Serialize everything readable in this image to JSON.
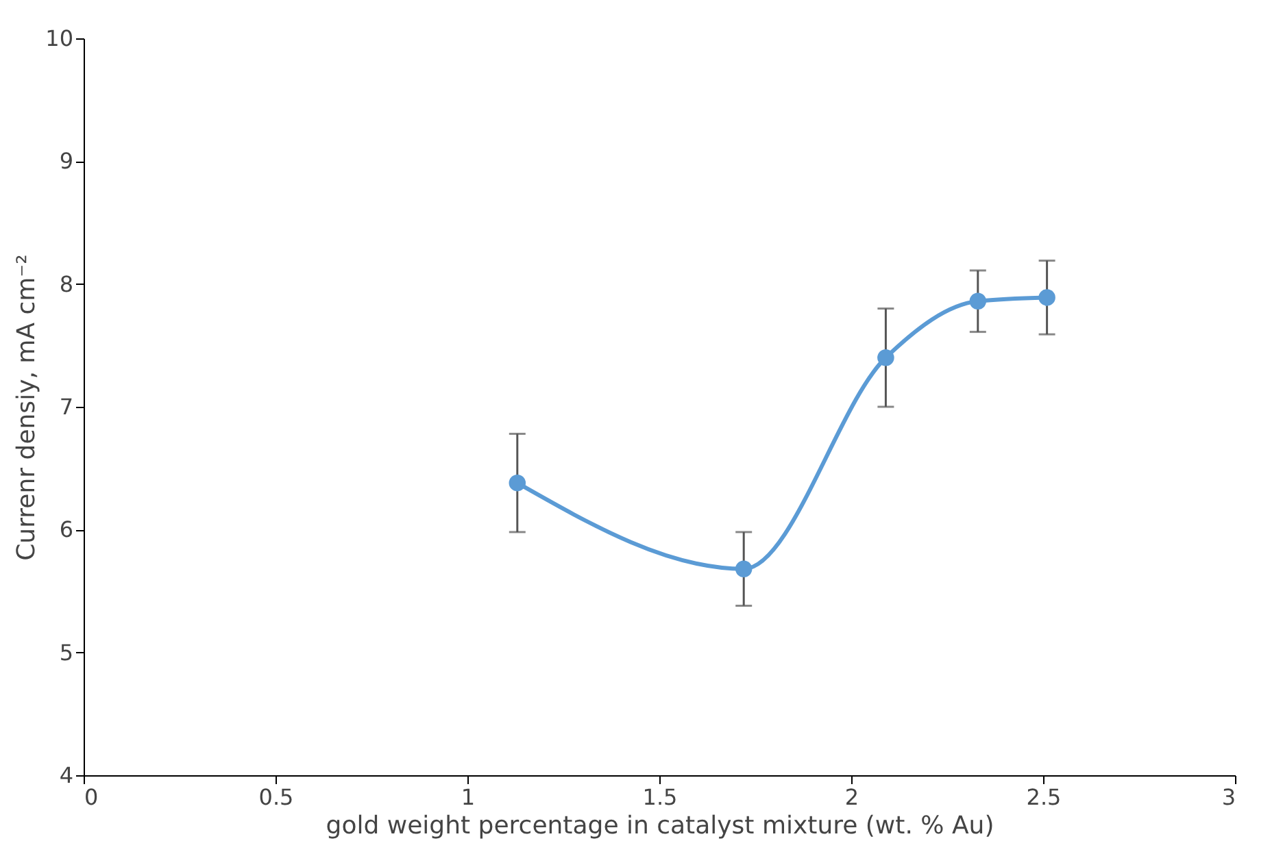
{
  "chart_data": {
    "type": "line",
    "xlabel": "gold weight percentage in catalyst mixture (wt. % Au)",
    "ylabel": "Currenr densiy, mA cm⁻²",
    "x": [
      1.13,
      1.72,
      2.09,
      2.33,
      2.51
    ],
    "series": [
      {
        "color": "#5b9bd5",
        "values": [
          6.38,
          5.68,
          7.4,
          7.86,
          7.89
        ],
        "errors": [
          0.4,
          0.3,
          0.4,
          0.25,
          0.3
        ]
      }
    ],
    "xlim": [
      0,
      3
    ],
    "xticks": [
      0,
      0.5,
      1,
      1.5,
      2,
      2.5,
      3
    ],
    "ylim": [
      4,
      10
    ],
    "yticks": [
      4,
      5,
      6,
      7,
      8,
      9,
      10
    ],
    "grid": false,
    "marker": "circle",
    "line_style": "solid"
  }
}
